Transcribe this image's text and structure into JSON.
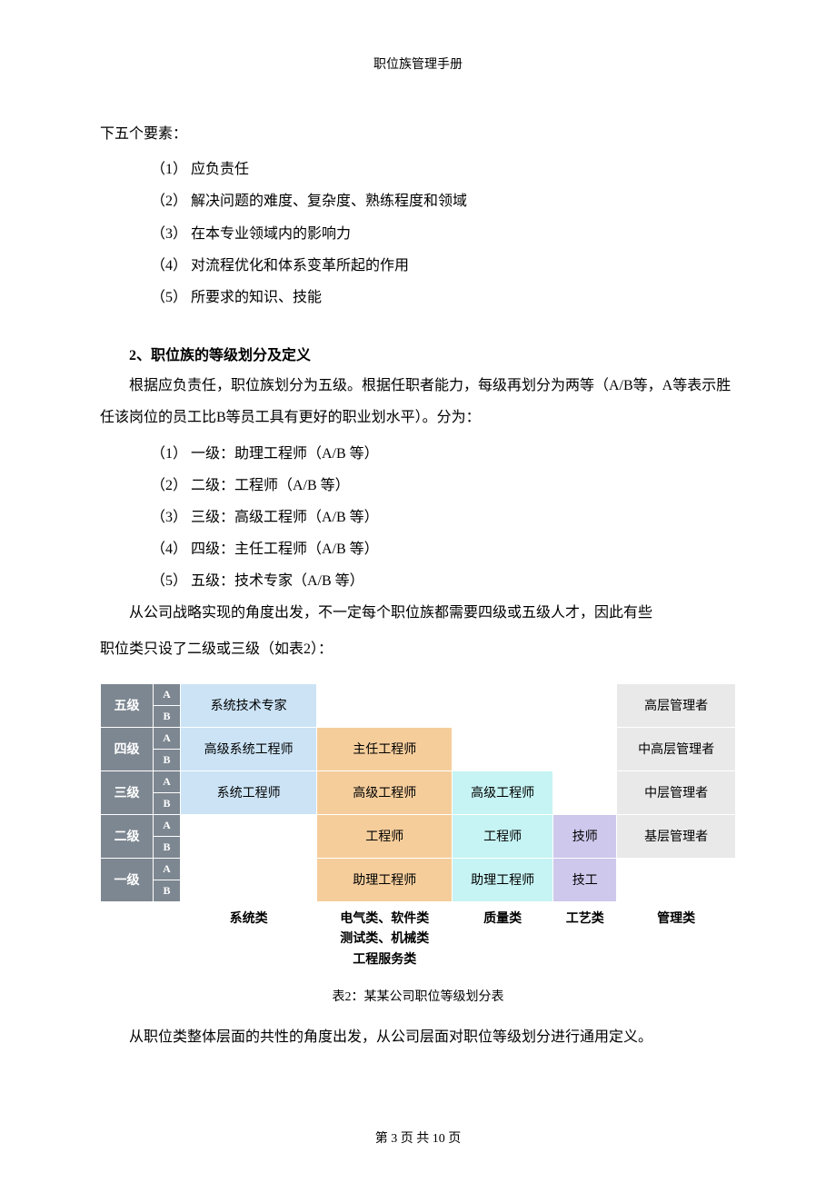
{
  "header": {
    "title": "职位族管理手册"
  },
  "intro_line": "下五个要素：",
  "factors": [
    "（1）  应负责任",
    "（2）  解决问题的难度、复杂度、熟练程度和领域",
    "（3）  在本专业领域内的影响力",
    "（4）  对流程优化和体系变革所起的作用",
    "（5）  所要求的知识、技能"
  ],
  "section2": {
    "title": "2、职位族的等级划分及定义",
    "para1": "根据应负责任，职位族划分为五级。根据任职者能力，每级再划分为两等（A/B等，A等表示胜任该岗位的员工比B等员工具有更好的职业划水平）。分为：",
    "levels": [
      "（1）  一级：助理工程师（A/B 等）",
      "（2）  二级：工程师（A/B 等）",
      "（3）  三级：高级工程师（A/B 等）",
      "（4）  四级：主任工程师（A/B 等）",
      "（5）  五级：技术专家（A/B 等）"
    ],
    "para2a": "从公司战略实现的角度出发，不一定每个职位族都需要四级或五级人才，因此有些",
    "para2b": "职位类只设了二级或三级（如表2）："
  },
  "table": {
    "rows": [
      {
        "level": "五级",
        "ab": [
          "A",
          "B"
        ],
        "sys": "系统技术专家",
        "multi": "",
        "qual": "",
        "craft": "",
        "mgmt": "高层管理者"
      },
      {
        "level": "四级",
        "ab": [
          "A",
          "B"
        ],
        "sys": "高级系统工程师",
        "multi": "主任工程师",
        "qual": "",
        "craft": "",
        "mgmt": "中高层管理者"
      },
      {
        "level": "三级",
        "ab": [
          "A",
          "B"
        ],
        "sys": "系统工程师",
        "multi": "高级工程师",
        "qual": "高级工程师",
        "craft": "",
        "mgmt": "中层管理者"
      },
      {
        "level": "二级",
        "ab": [
          "A",
          "B"
        ],
        "sys": "",
        "multi": "工程师",
        "qual": "工程师",
        "craft": "技师",
        "mgmt": "基层管理者"
      },
      {
        "level": "一级",
        "ab": [
          "A",
          "B"
        ],
        "sys": "",
        "multi": "助理工程师",
        "qual": "助理工程师",
        "craft": "技工",
        "mgmt": ""
      }
    ],
    "footer": {
      "sys": "系统类",
      "multi": "电气类、软件类\n测试类、机械类\n工程服务类",
      "qual": "质量类",
      "craft": "工艺类",
      "mgmt": "管理类"
    },
    "caption": "表2：某某公司职位等级划分表"
  },
  "closing": "从职位类整体层面的共性的角度出发，从公司层面对职位等级划分进行通用定义。",
  "page_footer": "第 3 页  共 10 页",
  "colors": {
    "level_bg": "#7d8791",
    "sys_bg": "#cbe3f5",
    "multi_bg": "#f5cd9b",
    "qual_bg": "#c6f3f3",
    "craft_bg": "#cdc8ec",
    "mgmt_bg": "#e9e9e9"
  }
}
